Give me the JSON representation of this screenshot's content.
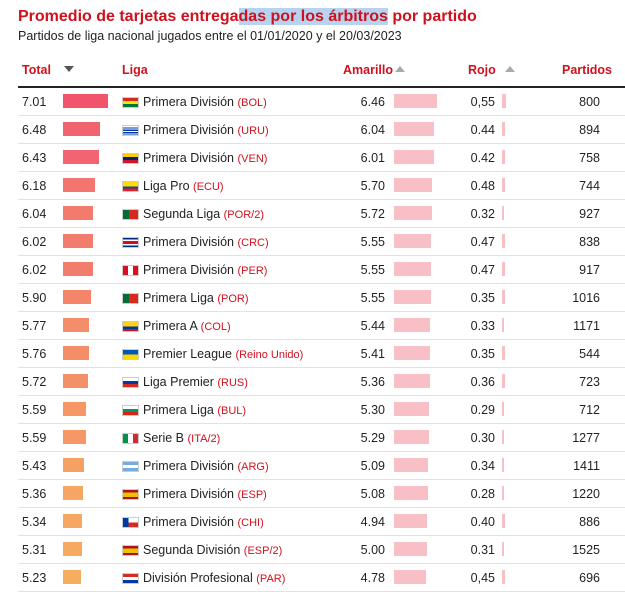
{
  "title_parts": [
    "Promedio de tarjetas entrega",
    "das por los árbitros",
    " por partido"
  ],
  "subtitle": "Partidos de liga nacional jugados entre el 01/01/2020 y el 20/03/2023",
  "columns": {
    "total": "Total",
    "liga": "Liga",
    "amarillo": "Amarillo",
    "rojo": "Rojo",
    "partidos": "Partidos"
  },
  "rows": [
    {
      "total": "7.01",
      "league": "Primera División",
      "code": "(BOL)",
      "flag": "bol",
      "amarillo": "6.46",
      "rojo": "0,55",
      "partidos": "800",
      "total_color": "#f1556b"
    },
    {
      "total": "6.48",
      "league": "Primera División",
      "code": "(URU)",
      "flag": "uru",
      "amarillo": "6.04",
      "rojo": "0.44",
      "partidos": "894",
      "total_color": "#f26370"
    },
    {
      "total": "6.43",
      "league": "Primera División",
      "code": "(VEN)",
      "flag": "ven",
      "amarillo": "6.01",
      "rojo": "0.42",
      "partidos": "758",
      "total_color": "#f26471"
    },
    {
      "total": "6.18",
      "league": "Liga Pro",
      "code": "(ECU)",
      "flag": "ecu",
      "amarillo": "5.70",
      "rojo": "0.48",
      "partidos": "744",
      "total_color": "#f27570"
    },
    {
      "total": "6.04",
      "league": "Segunda Liga",
      "code": "(POR/2)",
      "flag": "por",
      "amarillo": "5.72",
      "rojo": "0.32",
      "partidos": "927",
      "total_color": "#f37b6e"
    },
    {
      "total": "6.02",
      "league": "Primera División",
      "code": "(CRC)",
      "flag": "crc",
      "amarillo": "5.55",
      "rojo": "0.47",
      "partidos": "838",
      "total_color": "#f37d6d"
    },
    {
      "total": "6.02",
      "league": "Primera División",
      "code": "(PER)",
      "flag": "per",
      "amarillo": "5.55",
      "rojo": "0.47",
      "partidos": "917",
      "total_color": "#f37d6d"
    },
    {
      "total": "5.90",
      "league": "Primera Liga",
      "code": "(POR)",
      "flag": "por",
      "amarillo": "5.55",
      "rojo": "0.35",
      "partidos": "1016",
      "total_color": "#f4856b"
    },
    {
      "total": "5.77",
      "league": "Primera A",
      "code": "(COL)",
      "flag": "col",
      "amarillo": "5.44",
      "rojo": "0.33",
      "partidos": "1171",
      "total_color": "#f48d69"
    },
    {
      "total": "5.76",
      "league": "Premier League",
      "code": "(Reino Unido)",
      "flag": "ukr",
      "amarillo": "5.41",
      "rojo": "0.35",
      "partidos": "544",
      "total_color": "#f48e69"
    },
    {
      "total": "5.72",
      "league": "Liga Premier",
      "code": "(RUS)",
      "flag": "rus",
      "amarillo": "5.36",
      "rojo": "0.36",
      "partidos": "723",
      "total_color": "#f49068"
    },
    {
      "total": "5.59",
      "league": "Primera Liga",
      "code": "(BUL)",
      "flag": "bul",
      "amarillo": "5.30",
      "rojo": "0.29",
      "partidos": "712",
      "total_color": "#f59866"
    },
    {
      "total": "5.59",
      "league": "Serie B",
      "code": "(ITA/2)",
      "flag": "ita",
      "amarillo": "5.29",
      "rojo": "0.30",
      "partidos": "1277",
      "total_color": "#f59866"
    },
    {
      "total": "5.43",
      "league": "Primera División",
      "code": "(ARG)",
      "flag": "arg",
      "amarillo": "5.09",
      "rojo": "0.34",
      "partidos": "1411",
      "total_color": "#f5a163"
    },
    {
      "total": "5.36",
      "league": "Primera División",
      "code": "(ESP)",
      "flag": "esp",
      "amarillo": "5.08",
      "rojo": "0.28",
      "partidos": "1220",
      "total_color": "#f6a562"
    },
    {
      "total": "5.34",
      "league": "Primera División",
      "code": "(CHI)",
      "flag": "chi",
      "amarillo": "4.94",
      "rojo": "0.40",
      "partidos": "886",
      "total_color": "#f6a762"
    },
    {
      "total": "5.31",
      "league": "Segunda División",
      "code": "(ESP/2)",
      "flag": "esp",
      "amarillo": "5.00",
      "rojo": "0.31",
      "partidos": "1525",
      "total_color": "#f6a961"
    },
    {
      "total": "5.23",
      "league": "División Profesional",
      "code": "(PAR)",
      "flag": "par",
      "amarillo": "4.78",
      "rojo": "0,45",
      "partidos": "696",
      "total_color": "#f6ad60"
    }
  ]
}
